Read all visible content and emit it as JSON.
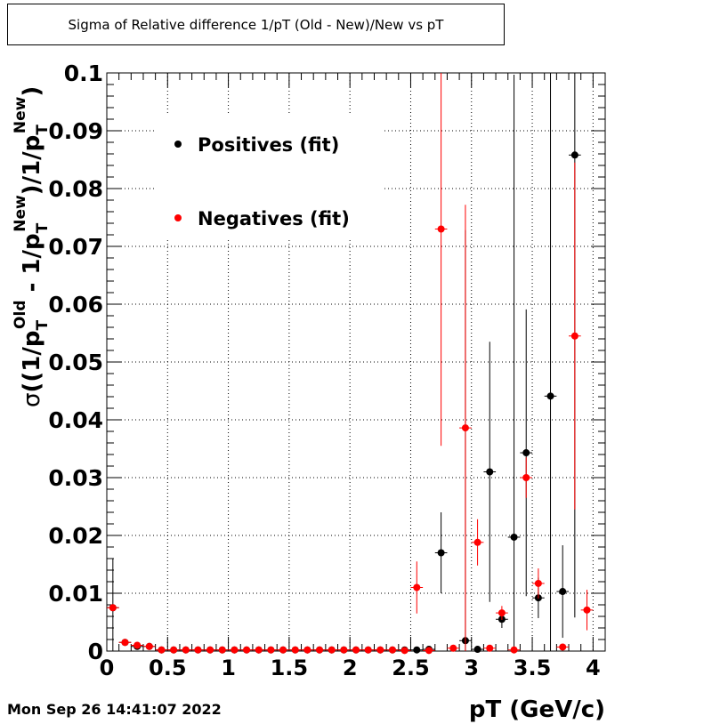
{
  "timestamp": "Mon Sep 26 14:41:07 2022",
  "chart_data": {
    "type": "scatter",
    "title": "Sigma of Relative difference 1/pT (Old - New)/New vs pT",
    "xlabel": "pT (GeV/c)",
    "ylabel": {
      "sigma": "σ",
      "open": "((1/p",
      "sub1": "T",
      "sup1": "Old",
      "mid": " - 1/p",
      "sub2": "T",
      "sup2": "New",
      "mid2": ")/1/p",
      "sub3": "T",
      "sup3": "New",
      "close": ")"
    },
    "xlim": [
      0,
      4.1
    ],
    "ylim": [
      0,
      0.1
    ],
    "xticks": [
      "0",
      "0.5",
      "1",
      "1.5",
      "2",
      "2.5",
      "3",
      "3.5",
      "4"
    ],
    "yticks": [
      "0",
      "0.01",
      "0.02",
      "0.03",
      "0.04",
      "0.05",
      "0.06",
      "0.07",
      "0.08",
      "0.09",
      "0.1"
    ],
    "grid": true,
    "legend_position": "top-left",
    "series": [
      {
        "name": "Positives (fit)",
        "color": "#000000",
        "points": [
          {
            "x": 0.05,
            "y": 0.0075,
            "err": 0.0085
          },
          {
            "x": 0.15,
            "y": 0.0015,
            "err": 0.0002
          },
          {
            "x": 0.25,
            "y": 0.0008,
            "err": 0.0002
          },
          {
            "x": 0.35,
            "y": 0.0008,
            "err": 0.0002
          },
          {
            "x": 0.45,
            "y": 0.0002,
            "err": 0
          },
          {
            "x": 0.55,
            "y": 0.0002,
            "err": 0
          },
          {
            "x": 0.65,
            "y": 0.0002,
            "err": 0
          },
          {
            "x": 0.75,
            "y": 0.0002,
            "err": 0
          },
          {
            "x": 0.85,
            "y": 0.0002,
            "err": 0
          },
          {
            "x": 0.95,
            "y": 0.0002,
            "err": 0
          },
          {
            "x": 1.05,
            "y": 0.0002,
            "err": 0
          },
          {
            "x": 1.15,
            "y": 0.0002,
            "err": 0
          },
          {
            "x": 1.25,
            "y": 0.0002,
            "err": 0
          },
          {
            "x": 1.35,
            "y": 0.0002,
            "err": 0
          },
          {
            "x": 1.45,
            "y": 0.0002,
            "err": 0
          },
          {
            "x": 1.55,
            "y": 0.0002,
            "err": 0
          },
          {
            "x": 1.65,
            "y": 0.0002,
            "err": 0
          },
          {
            "x": 1.75,
            "y": 0.0002,
            "err": 0
          },
          {
            "x": 1.85,
            "y": 0.0002,
            "err": 0
          },
          {
            "x": 1.95,
            "y": 0.0002,
            "err": 0
          },
          {
            "x": 2.05,
            "y": 0.0002,
            "err": 0
          },
          {
            "x": 2.15,
            "y": 0.0002,
            "err": 0
          },
          {
            "x": 2.25,
            "y": 0.0002,
            "err": 0
          },
          {
            "x": 2.35,
            "y": 0.0002,
            "err": 0
          },
          {
            "x": 2.45,
            "y": 0.0002,
            "err": 0
          },
          {
            "x": 2.55,
            "y": 0.0002,
            "err": 0
          },
          {
            "x": 2.65,
            "y": 0.0003,
            "err": 0.0003
          },
          {
            "x": 2.75,
            "y": 0.017,
            "err": 0.007
          },
          {
            "x": 2.95,
            "y": 0.0018,
            "err": 0.071
          },
          {
            "x": 3.05,
            "y": 0.0003,
            "err": 0.0003
          },
          {
            "x": 3.15,
            "y": 0.031,
            "err": 0.0225
          },
          {
            "x": 3.25,
            "y": 0.0055,
            "err": 0.0015
          },
          {
            "x": 3.35,
            "y": 0.0197,
            "err": 0.08
          },
          {
            "x": 3.45,
            "y": 0.0343,
            "err": 0.0248
          },
          {
            "x": 3.55,
            "y": 0.0092,
            "err": 0.0035
          },
          {
            "x": 3.65,
            "y": 0.0441,
            "err": 0.08
          },
          {
            "x": 3.75,
            "y": 0.0103,
            "err": 0.008
          },
          {
            "x": 3.85,
            "y": 0.0858,
            "err": 0.08
          }
        ]
      },
      {
        "name": "Negatives (fit)",
        "color": "#ff0000",
        "points": [
          {
            "x": 0.05,
            "y": 0.0075,
            "err": 0.0005
          },
          {
            "x": 0.15,
            "y": 0.0015,
            "err": 0.0002
          },
          {
            "x": 0.25,
            "y": 0.001,
            "err": 0.0002
          },
          {
            "x": 0.35,
            "y": 0.0008,
            "err": 0.0001
          },
          {
            "x": 0.45,
            "y": 0.0002,
            "err": 0
          },
          {
            "x": 0.55,
            "y": 0.0002,
            "err": 0
          },
          {
            "x": 0.65,
            "y": 0.0002,
            "err": 0
          },
          {
            "x": 0.75,
            "y": 0.0002,
            "err": 0
          },
          {
            "x": 0.85,
            "y": 0.0002,
            "err": 0
          },
          {
            "x": 0.95,
            "y": 0.0002,
            "err": 0
          },
          {
            "x": 1.05,
            "y": 0.0002,
            "err": 0
          },
          {
            "x": 1.15,
            "y": 0.0002,
            "err": 0
          },
          {
            "x": 1.25,
            "y": 0.0002,
            "err": 0
          },
          {
            "x": 1.35,
            "y": 0.0002,
            "err": 0
          },
          {
            "x": 1.45,
            "y": 0.0002,
            "err": 0
          },
          {
            "x": 1.55,
            "y": 0.0002,
            "err": 0
          },
          {
            "x": 1.65,
            "y": 0.0002,
            "err": 0
          },
          {
            "x": 1.75,
            "y": 0.0002,
            "err": 0
          },
          {
            "x": 1.85,
            "y": 0.0002,
            "err": 0
          },
          {
            "x": 1.95,
            "y": 0.0002,
            "err": 0
          },
          {
            "x": 2.05,
            "y": 0.0002,
            "err": 0
          },
          {
            "x": 2.15,
            "y": 0.0002,
            "err": 0
          },
          {
            "x": 2.25,
            "y": 0.0002,
            "err": 0
          },
          {
            "x": 2.35,
            "y": 0.0002,
            "err": 0
          },
          {
            "x": 2.45,
            "y": 0.0001,
            "err": 0
          },
          {
            "x": 2.55,
            "y": 0.011,
            "err": 0.0045
          },
          {
            "x": 2.65,
            "y": 0.0001,
            "err": 0
          },
          {
            "x": 2.75,
            "y": 0.073,
            "err": 0.0375
          },
          {
            "x": 2.85,
            "y": 0.0005,
            "err": 0.0002
          },
          {
            "x": 2.95,
            "y": 0.0386,
            "err": 0.0386
          },
          {
            "x": 3.05,
            "y": 0.0188,
            "err": 0.004
          },
          {
            "x": 3.15,
            "y": 0.0005,
            "err": 0.0001
          },
          {
            "x": 3.25,
            "y": 0.0066,
            "err": 0.0012
          },
          {
            "x": 3.35,
            "y": 0.0002,
            "err": 0
          },
          {
            "x": 3.45,
            "y": 0.03,
            "err": 0.0035
          },
          {
            "x": 3.55,
            "y": 0.0117,
            "err": 0.0026
          },
          {
            "x": 3.75,
            "y": 0.0007,
            "err": 0.0002
          },
          {
            "x": 3.85,
            "y": 0.0545,
            "err": 0.03
          },
          {
            "x": 3.95,
            "y": 0.0071,
            "err": 0.0035
          }
        ]
      }
    ]
  }
}
